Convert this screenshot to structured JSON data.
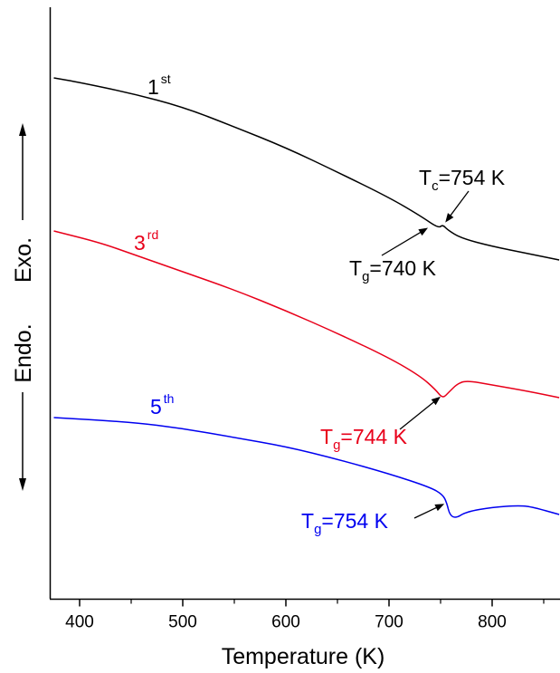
{
  "chart_data": {
    "type": "line",
    "xlabel": "Temperature (K)",
    "ylabel_top": "Exo.",
    "ylabel_bottom": "Endo.",
    "xlim": [
      375,
      865
    ],
    "xticks": [
      400,
      500,
      600,
      700,
      800
    ],
    "yticks": "none",
    "grid": false,
    "series": [
      {
        "name": "1st",
        "color": "#000000",
        "points": [
          [
            375,
            86
          ],
          [
            400,
            91
          ],
          [
            450,
            103
          ],
          [
            500,
            118
          ],
          [
            550,
            140
          ],
          [
            600,
            163
          ],
          [
            650,
            190
          ],
          [
            700,
            218
          ],
          [
            730,
            238
          ],
          [
            748,
            252
          ],
          [
            752,
            248
          ],
          [
            757,
            254
          ],
          [
            770,
            263
          ],
          [
            800,
            272
          ],
          [
            835,
            280
          ],
          [
            865,
            287
          ]
        ]
      },
      {
        "name": "3rd",
        "color": "#e8001a",
        "points": [
          [
            375,
            255
          ],
          [
            420,
            268
          ],
          [
            450,
            280
          ],
          [
            500,
            300
          ],
          [
            550,
            320
          ],
          [
            600,
            343
          ],
          [
            650,
            368
          ],
          [
            700,
            395
          ],
          [
            730,
            415
          ],
          [
            745,
            430
          ],
          [
            752,
            440
          ],
          [
            758,
            433
          ],
          [
            766,
            424
          ],
          [
            775,
            420
          ],
          [
            800,
            425
          ],
          [
            835,
            432
          ],
          [
            865,
            439
          ]
        ]
      },
      {
        "name": "5th",
        "color": "#0000f0",
        "points": [
          [
            375,
            461
          ],
          [
            450,
            466
          ],
          [
            500,
            473
          ],
          [
            550,
            483
          ],
          [
            600,
            493
          ],
          [
            650,
            507
          ],
          [
            700,
            523
          ],
          [
            740,
            538
          ],
          [
            752,
            546
          ],
          [
            756,
            555
          ],
          [
            759,
            569
          ],
          [
            765,
            572
          ],
          [
            775,
            565
          ],
          [
            800,
            560
          ],
          [
            827,
            558
          ],
          [
            840,
            560
          ],
          [
            865,
            568
          ]
        ]
      }
    ],
    "annotations": [
      {
        "id": "tc-754",
        "main": "T",
        "sub": "c",
        "rest": "=754 K",
        "color": "#000000",
        "target": [
          753,
          248
        ]
      },
      {
        "id": "tg-740",
        "main": "T",
        "sub": "g",
        "rest": "=740 K",
        "color": "#000000",
        "target": [
          740,
          250
        ]
      },
      {
        "id": "tg-744",
        "main": "T",
        "sub": "g",
        "rest": "=744 K",
        "color": "#e8001a",
        "target": [
          752,
          436
        ]
      },
      {
        "id": "tg-754",
        "main": "T",
        "sub": "g",
        "rest": "=754 K",
        "color": "#0000f0",
        "target": [
          756,
          555
        ]
      }
    ],
    "series_labels": [
      {
        "id": "first",
        "base": "1",
        "sup": "st",
        "color": "#000000"
      },
      {
        "id": "third",
        "base": "3",
        "sup": "rd",
        "color": "#e8001a"
      },
      {
        "id": "fifth",
        "base": "5",
        "sup": "th",
        "color": "#0000f0"
      }
    ]
  }
}
